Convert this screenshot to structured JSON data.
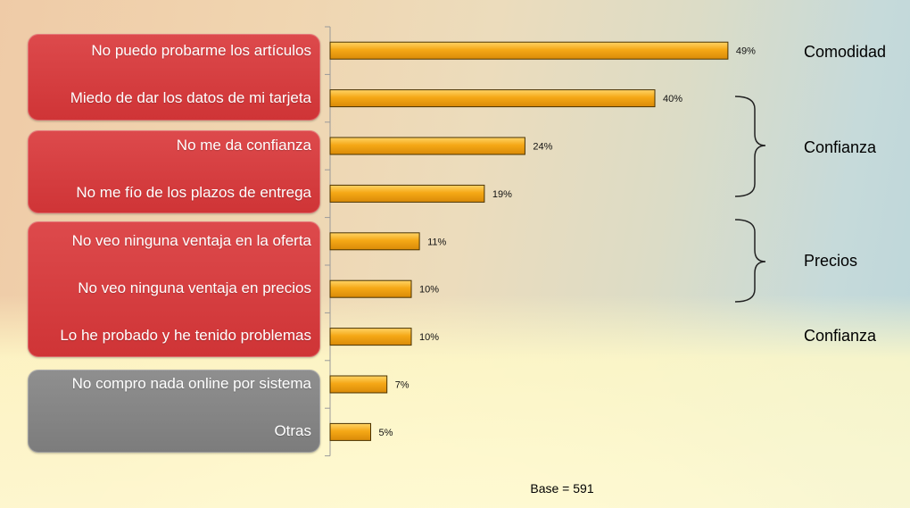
{
  "chart_data": {
    "type": "bar",
    "orientation": "horizontal",
    "categories": [
      "No puedo probarme los artículos",
      "Miedo de dar los datos de mi tarjeta",
      "No me da confianza",
      "No me fío de los plazos de entrega",
      "No veo ninguna ventaja en la oferta",
      "No veo ninguna ventaja en precios",
      "Lo he probado y he tenido problemas",
      "No compro nada online por sistema",
      "Otras"
    ],
    "values": [
      49,
      40,
      24,
      19,
      11,
      10,
      10,
      7,
      5
    ],
    "value_labels": [
      "49%",
      "40%",
      "24%",
      "19%",
      "11%",
      "10%",
      "10%",
      "7%",
      "5%"
    ],
    "xlim": [
      0,
      50
    ],
    "unit": "%",
    "bar_color": "#f2a314",
    "grid": false,
    "annotations": {
      "groups": [
        "Comodidad",
        "Confianza",
        "Precios",
        "Confianza"
      ],
      "base": "Base = 591"
    }
  },
  "label_groups": [
    {
      "color": "#d63c3e",
      "items": [
        0,
        1
      ]
    },
    {
      "color": "#d63c3e",
      "items": [
        2,
        3
      ]
    },
    {
      "color": "#d63c3e",
      "items": [
        4,
        5,
        6
      ]
    },
    {
      "color": "#858585",
      "items": [
        7,
        8
      ]
    }
  ]
}
